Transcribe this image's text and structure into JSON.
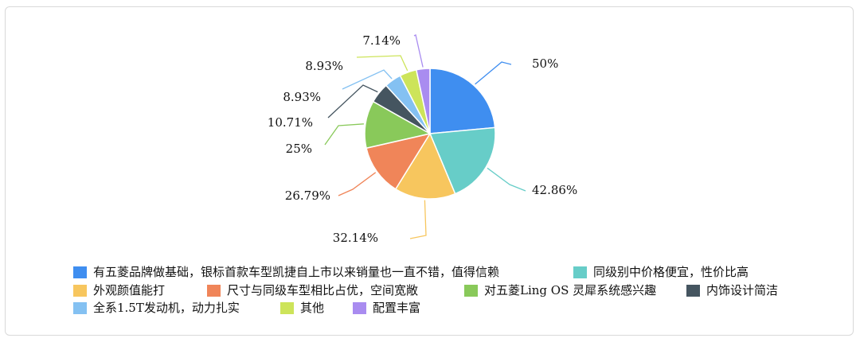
{
  "chart_data": {
    "type": "pie",
    "categories": [
      "有五菱品牌做基础，银标首款车型凯捷自上市以来销量也一直不错，值得信赖",
      "同级别中价格便宜，性价比高",
      "外观颜值能打",
      "尺寸与同级车型相比占优，空间宽敞",
      "对五菱Ling OS 灵犀系统感兴趣",
      "内饰设计简洁",
      "全系1.5T发动机，动力扎实",
      "其他",
      "配置丰富"
    ],
    "values": [
      50,
      42.86,
      32.14,
      26.79,
      25,
      10.71,
      8.93,
      8.93,
      7.14
    ],
    "labels": [
      "50%",
      "42.86%",
      "32.14%",
      "26.79%",
      "25%",
      "10.71%",
      "8.93%",
      "8.93%",
      "7.14%"
    ],
    "colors": [
      "#3f8ef0",
      "#67cdc8",
      "#f7c65e",
      "#f08559",
      "#89c95a",
      "#455560",
      "#84c1f2",
      "#cde45a",
      "#a98cf0"
    ],
    "legend_position": "bottom"
  }
}
